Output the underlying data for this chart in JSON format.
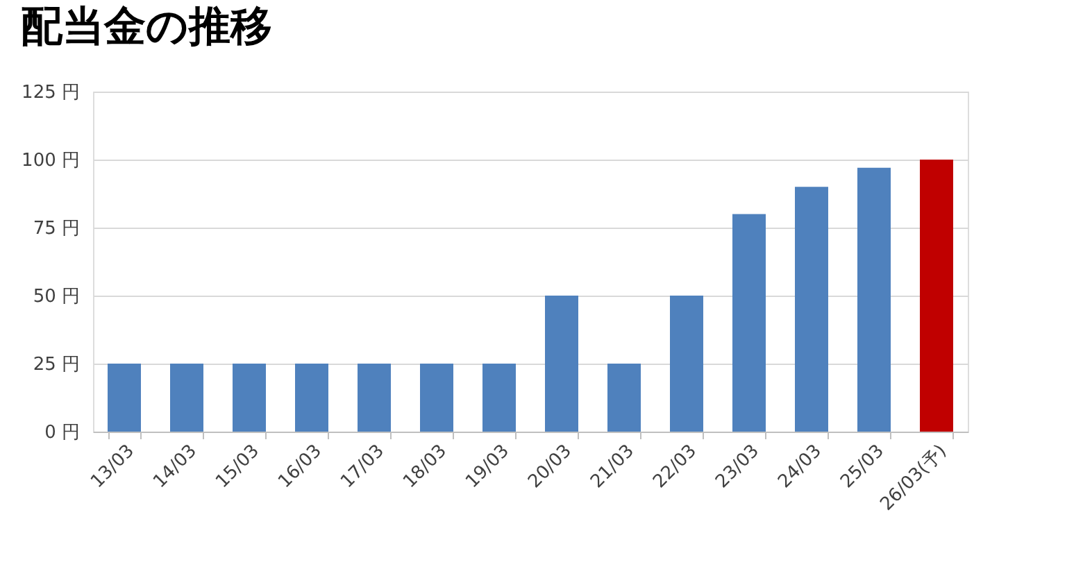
{
  "chart_data": {
    "type": "bar",
    "title": "配当金の推移",
    "categories": [
      "13/03",
      "14/03",
      "15/03",
      "16/03",
      "17/03",
      "18/03",
      "19/03",
      "20/03",
      "21/03",
      "22/03",
      "23/03",
      "24/03",
      "25/03",
      "26/03(予)"
    ],
    "values": [
      25,
      25,
      25,
      25,
      25,
      25,
      25,
      50,
      25,
      50,
      80,
      90,
      97,
      100
    ],
    "colors": [
      "#4f81bd",
      "#4f81bd",
      "#4f81bd",
      "#4f81bd",
      "#4f81bd",
      "#4f81bd",
      "#4f81bd",
      "#4f81bd",
      "#4f81bd",
      "#4f81bd",
      "#4f81bd",
      "#4f81bd",
      "#4f81bd",
      "#c00000"
    ],
    "ylim": [
      0,
      125
    ],
    "yticks": [
      {
        "value": 0,
        "label": "0 円"
      },
      {
        "value": 25,
        "label": "25 円"
      },
      {
        "value": 50,
        "label": "50 円"
      },
      {
        "value": 75,
        "label": "75 円"
      },
      {
        "value": 100,
        "label": "100 円"
      },
      {
        "value": 125,
        "label": "125 円"
      }
    ],
    "grid": "y"
  }
}
